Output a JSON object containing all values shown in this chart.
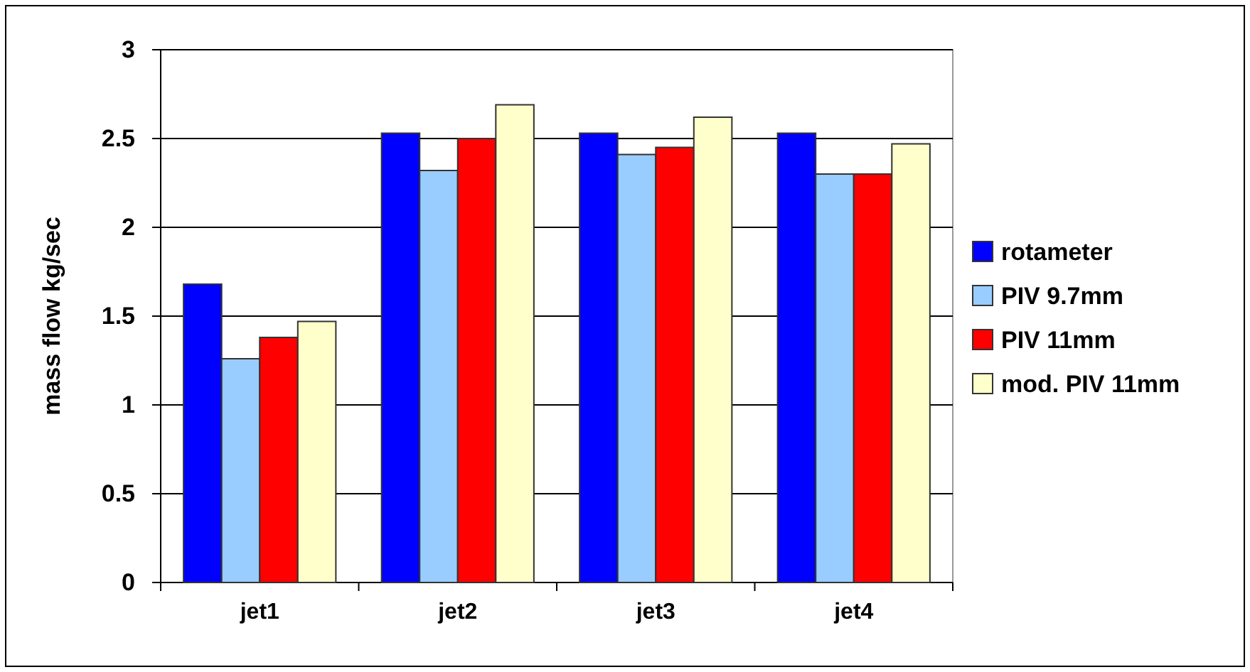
{
  "chart_data": {
    "type": "bar",
    "ylabel": "mass flow kg/sec",
    "categories": [
      "jet1",
      "jet2",
      "jet3",
      "jet4"
    ],
    "series": [
      {
        "name": "rotameter",
        "color": "#0000ff",
        "values": [
          1.68,
          2.53,
          2.53,
          2.53
        ]
      },
      {
        "name": "PIV 9.7mm",
        "color": "#99ccff",
        "values": [
          1.26,
          2.32,
          2.41,
          2.3
        ]
      },
      {
        "name": "PIV 11mm",
        "color": "#ff0000",
        "values": [
          1.38,
          2.5,
          2.45,
          2.3
        ]
      },
      {
        "name": "mod. PIV 11mm",
        "color": "#ffffcc",
        "values": [
          1.47,
          2.69,
          2.62,
          2.47
        ]
      }
    ],
    "ylim": [
      0,
      3
    ],
    "yticks": [
      0,
      0.5,
      1,
      1.5,
      2,
      2.5,
      3
    ],
    "grid": "y",
    "legend": "right"
  }
}
